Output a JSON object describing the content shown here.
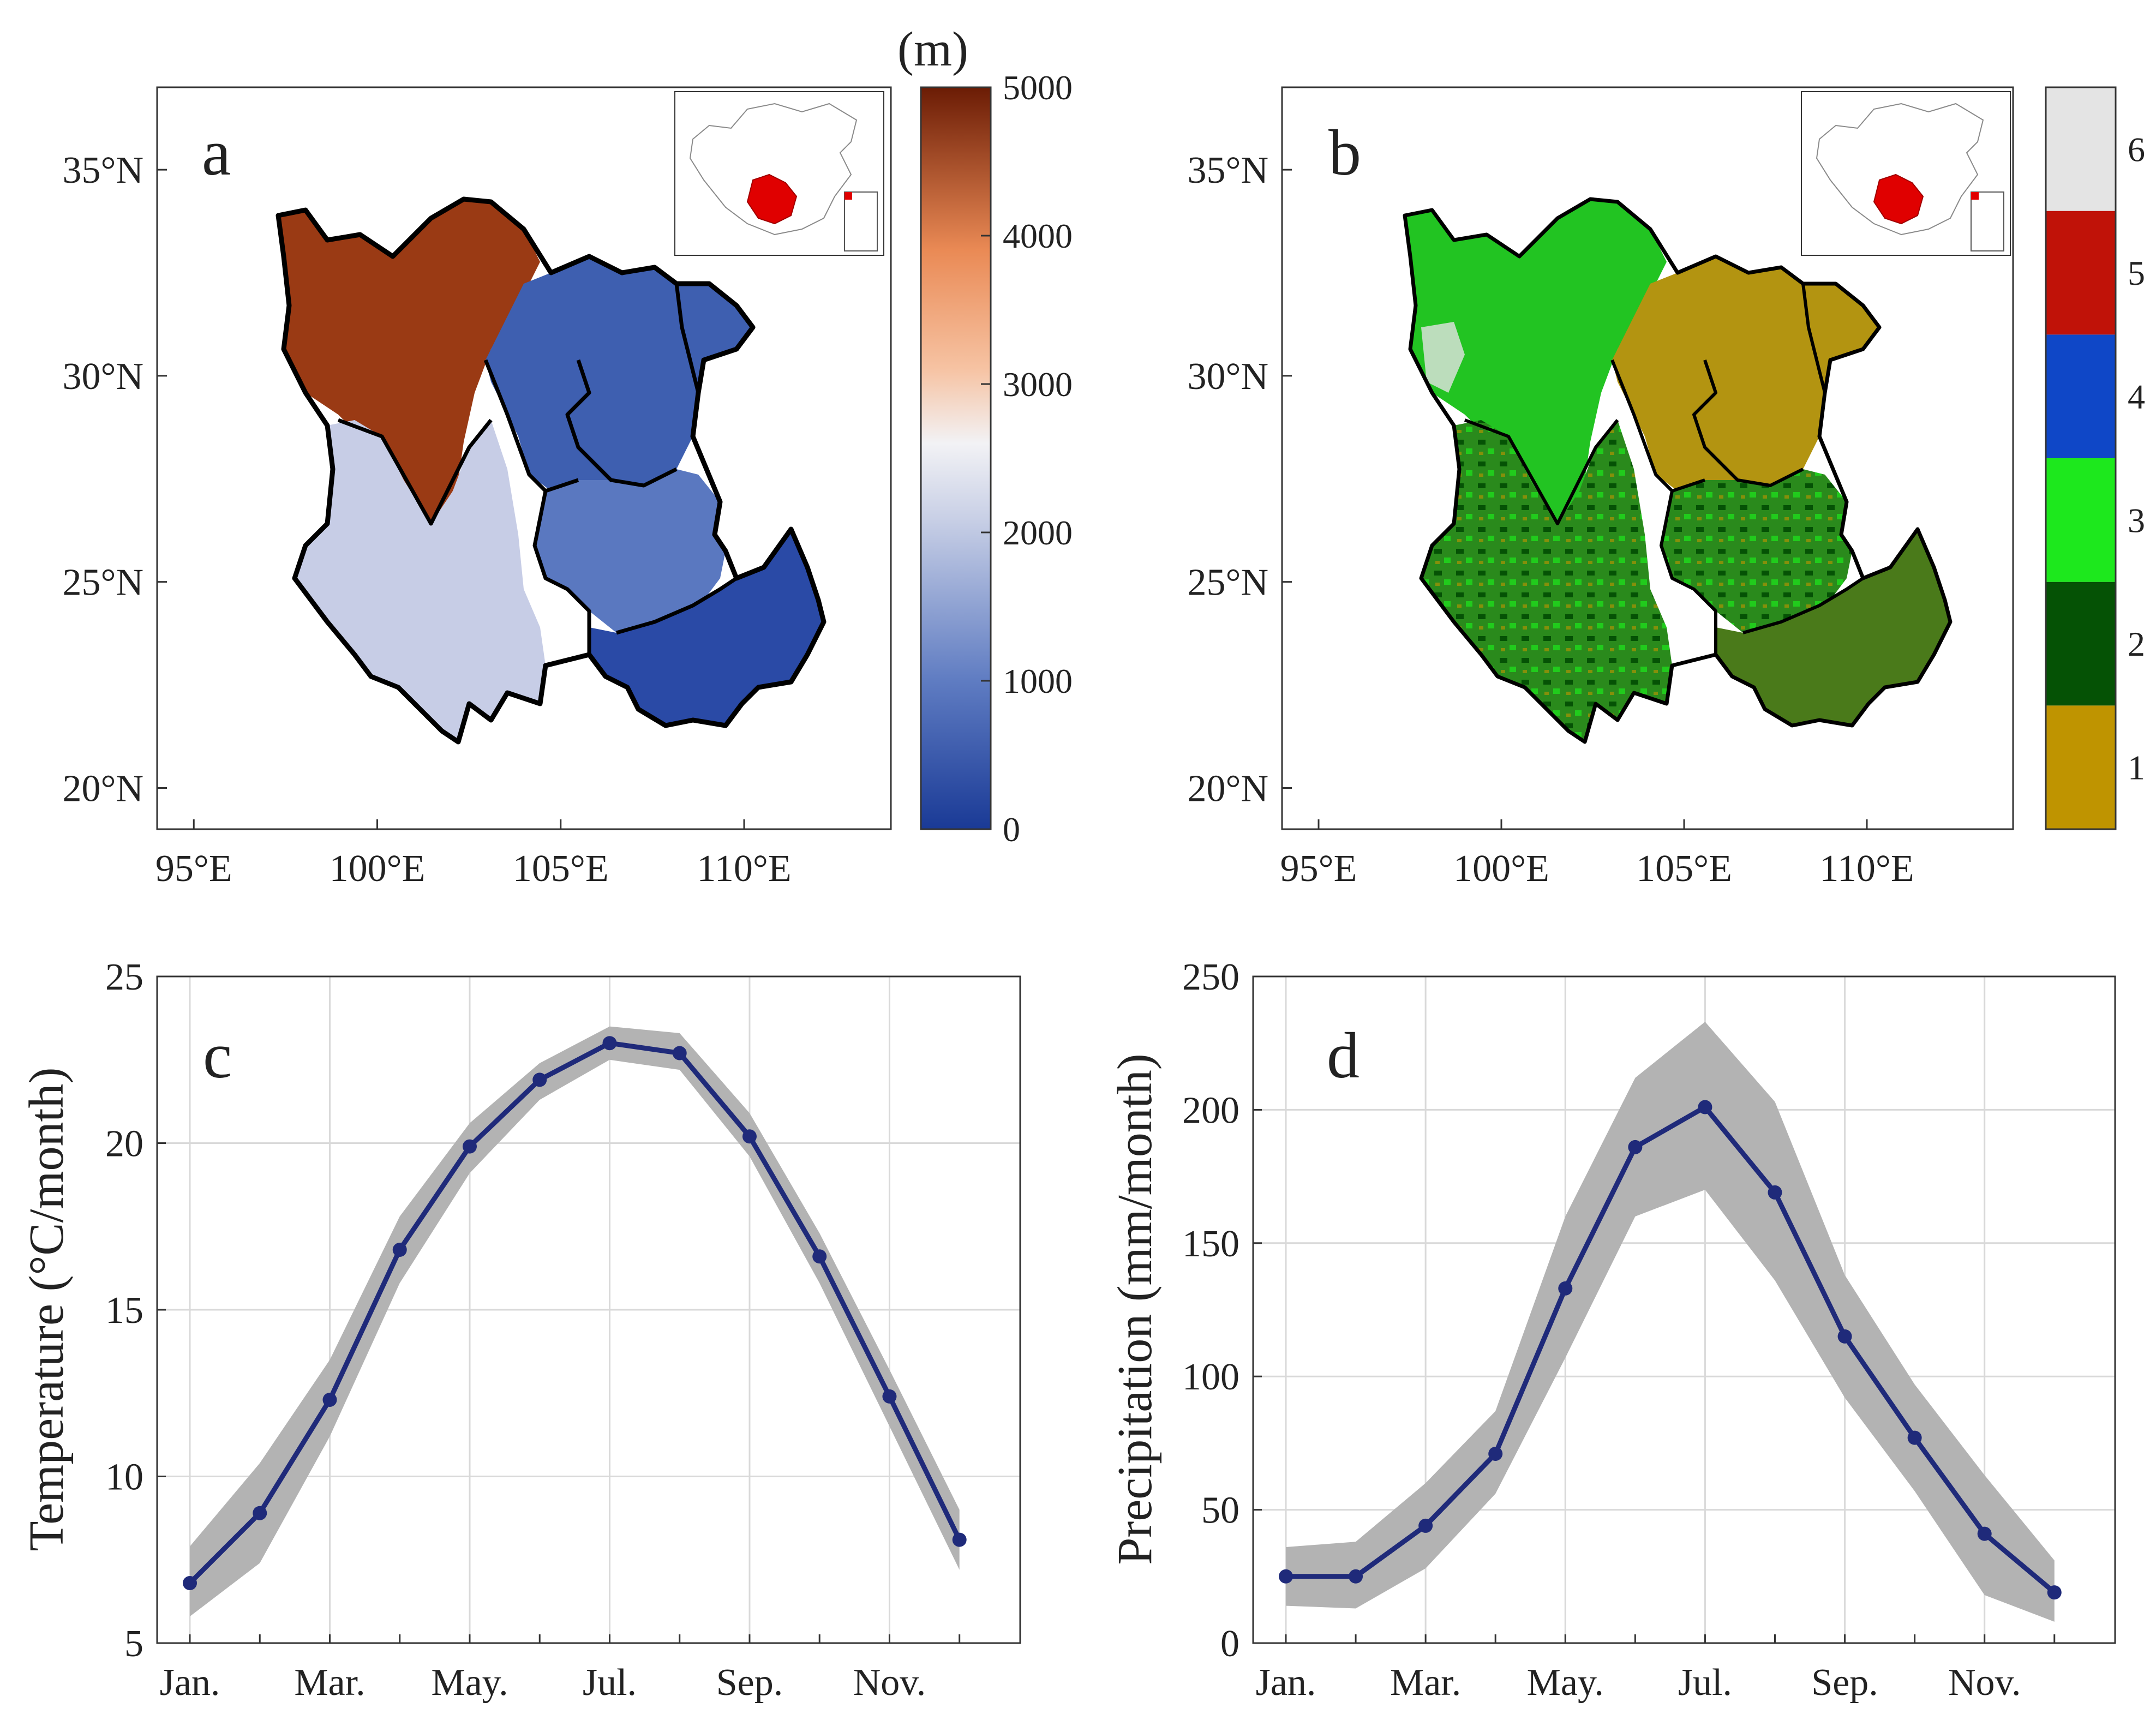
{
  "figure": {
    "colors": {
      "axis": "#333333",
      "grid": "#d9d9d9",
      "series_line": "#1f2a7a",
      "band": "#b3b3b3",
      "boundary": "#000000",
      "highlight": "#e00000",
      "elev_low": "#1a3a96",
      "elev_mid": "#f2f2f5",
      "elev_high": "#6b1c05"
    },
    "map_axis": {
      "x_ticks": [
        "95°E",
        "100°E",
        "105°E",
        "110°E"
      ],
      "x_values": [
        95,
        100,
        105,
        110
      ],
      "xlim": [
        94,
        114
      ],
      "y_ticks": [
        "35°N",
        "30°N",
        "25°N",
        "20°N"
      ],
      "y_values": [
        35,
        30,
        25,
        20
      ],
      "ylim": [
        19,
        37
      ]
    },
    "panel_a": {
      "letter": "a",
      "colorbar_unit": "(m)",
      "colorbar_ticks": [
        "5000",
        "4000",
        "3000",
        "2000",
        "1000",
        "0"
      ],
      "colorbar_values": [
        5000,
        4000,
        3000,
        2000,
        1000,
        0
      ],
      "colorbar_range": [
        0,
        5000
      ]
    },
    "panel_b": {
      "letter": "b",
      "classes": [
        {
          "label": "1",
          "color": "#bf9400"
        },
        {
          "label": "2",
          "color": "#055205"
        },
        {
          "label": "3",
          "color": "#1de81d"
        },
        {
          "label": "4",
          "color": "#0f47c7"
        },
        {
          "label": "5",
          "color": "#c01208"
        },
        {
          "label": "6",
          "color": "#e4e4e4"
        }
      ]
    }
  },
  "chart_data": [
    {
      "type": "line",
      "panel": "c",
      "title": "c",
      "xlabel": "",
      "ylabel": "Temperature (°C/month)",
      "categories": [
        "Jan.",
        "Feb.",
        "Mar.",
        "Apr.",
        "May.",
        "Jun.",
        "Jul.",
        "Aug.",
        "Sep.",
        "Oct.",
        "Nov.",
        "Dec."
      ],
      "x_tick_labels": [
        "Jan.",
        "Mar.",
        "May.",
        "Jul.",
        "Sep.",
        "Nov."
      ],
      "series": [
        {
          "name": "mean",
          "values": [
            6.8,
            8.9,
            12.3,
            16.8,
            19.9,
            21.9,
            23.0,
            22.7,
            20.2,
            16.6,
            12.4,
            8.1
          ]
        }
      ],
      "band_upper": [
        7.9,
        10.4,
        13.5,
        17.8,
        20.6,
        22.4,
        23.5,
        23.3,
        20.9,
        17.3,
        13.2,
        9.0
      ],
      "band_lower": [
        5.8,
        7.4,
        11.2,
        15.8,
        19.1,
        21.3,
        22.5,
        22.2,
        19.6,
        15.8,
        11.5,
        7.2
      ],
      "y_ticks": [
        5,
        10,
        15,
        20,
        25
      ],
      "ylim": [
        5,
        25
      ],
      "grid": true
    },
    {
      "type": "line",
      "panel": "d",
      "title": "d",
      "xlabel": "",
      "ylabel": "Precipitation (mm/month)",
      "categories": [
        "Jan.",
        "Feb.",
        "Mar.",
        "Apr.",
        "May.",
        "Jun.",
        "Jul.",
        "Aug.",
        "Sep.",
        "Oct.",
        "Nov.",
        "Dec."
      ],
      "x_tick_labels": [
        "Jan.",
        "Mar.",
        "May.",
        "Jul.",
        "Sep.",
        "Nov."
      ],
      "series": [
        {
          "name": "mean",
          "values": [
            25,
            25,
            44,
            71,
            133,
            186,
            201,
            169,
            115,
            77,
            41,
            19
          ]
        }
      ],
      "band_upper": [
        36,
        38,
        60,
        87,
        160,
        212,
        233,
        203,
        138,
        97,
        63,
        31
      ],
      "band_lower": [
        14,
        13,
        28,
        56,
        107,
        160,
        170,
        136,
        92,
        57,
        18,
        8
      ],
      "y_ticks": [
        0,
        50,
        100,
        150,
        200,
        250
      ],
      "ylim": [
        0,
        250
      ],
      "grid": true
    }
  ]
}
